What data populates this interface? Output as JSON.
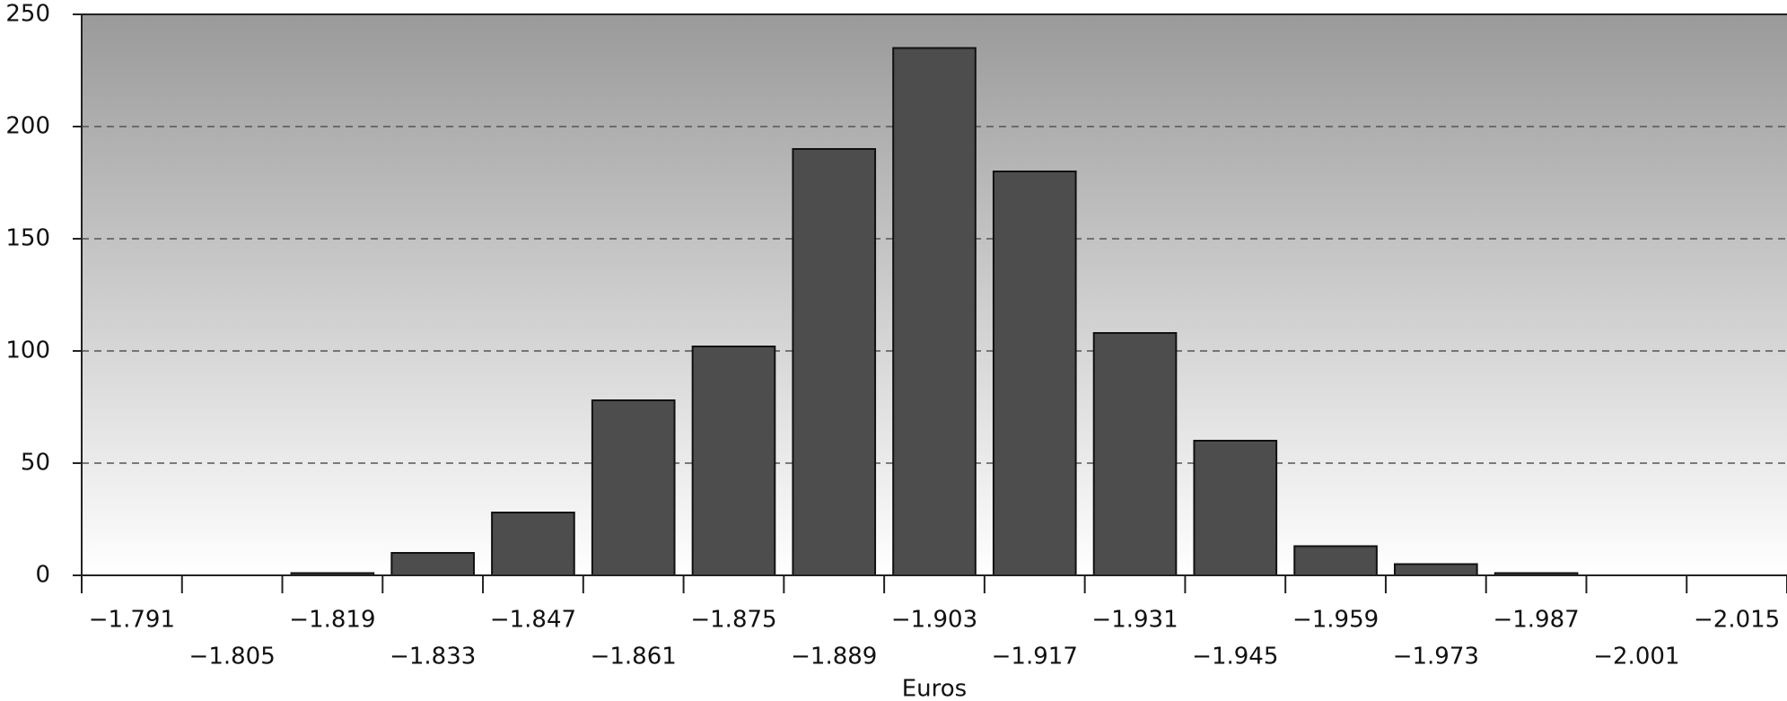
{
  "chart_data": {
    "type": "bar",
    "x_label": "Euros",
    "categories": [
      "−1.791",
      "−1.805",
      "−1.819",
      "−1.833",
      "−1.847",
      "−1.861",
      "−1.875",
      "−1.889",
      "−1.903",
      "−1.917",
      "−1.931",
      "−1.945",
      "−1.959",
      "−1.973",
      "−1.987",
      "−2.001",
      "−2.015"
    ],
    "values": [
      0,
      0,
      1,
      10,
      28,
      78,
      102,
      190,
      235,
      180,
      108,
      60,
      13,
      5,
      1,
      0,
      0
    ],
    "color": "#4d4d4d",
    "ylim": [
      0,
      250
    ],
    "yticks": [
      0,
      50,
      100,
      150,
      200,
      250
    ],
    "grid": true
  }
}
